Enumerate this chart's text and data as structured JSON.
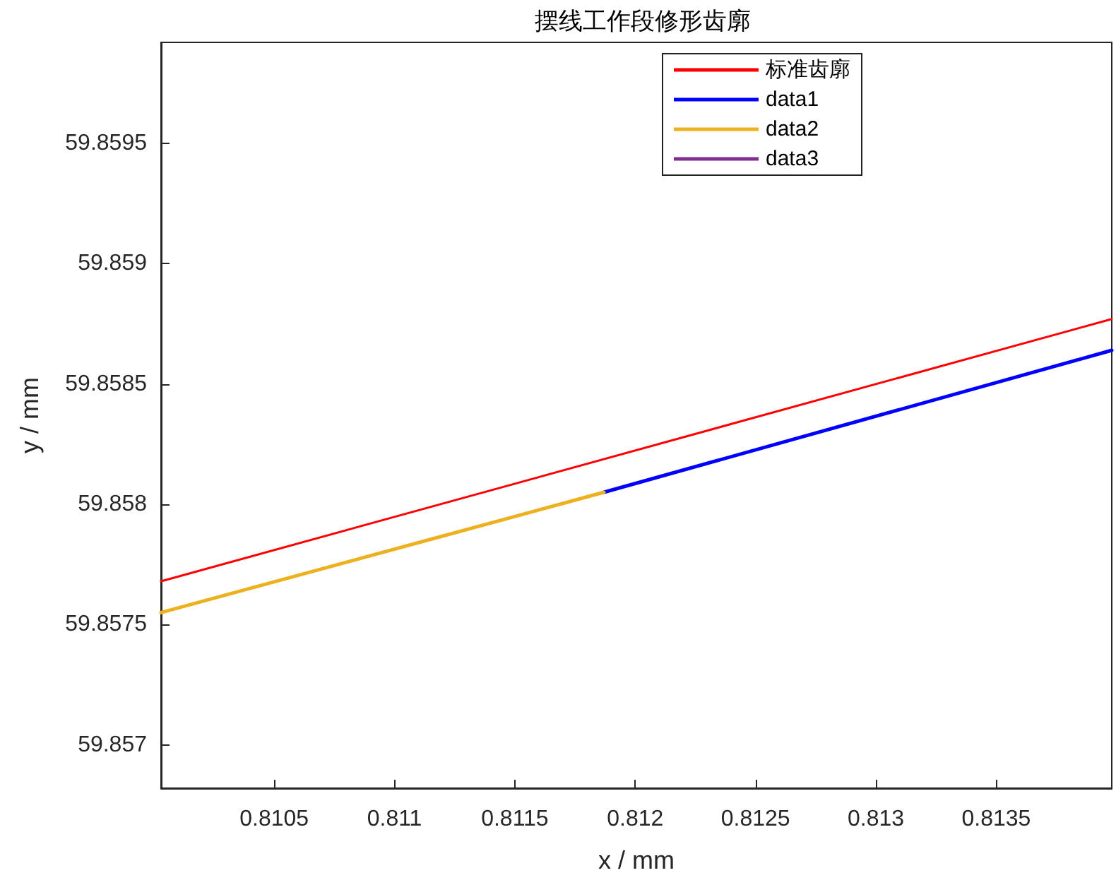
{
  "chart_data": {
    "type": "line",
    "title": "摆线工作段修形齿廓",
    "xlabel": "x / mm",
    "ylabel": "y / mm",
    "xlim": [
      0.81003,
      0.81398
    ],
    "xticks": [
      0.8105,
      0.811,
      0.8115,
      0.812,
      0.8125,
      0.813,
      0.8135
    ],
    "ylim": [
      59.85682,
      59.85992
    ],
    "yticks": [
      59.857,
      59.8575,
      59.858,
      59.8585,
      59.859,
      59.8595
    ],
    "grid": false,
    "legend": "top right",
    "marker": "none",
    "line_style": "solid",
    "series": [
      {
        "name": "标准齿廓",
        "color": "#ff0000",
        "x": [
          0.81003,
          0.81398
        ],
        "values": [
          59.85768,
          59.85877
        ]
      },
      {
        "name": "data1",
        "color": "#0000ff",
        "x": [
          0.81187,
          0.81398
        ],
        "values": [
          59.85805,
          59.85864
        ]
      },
      {
        "name": "data2",
        "color": "#edb120",
        "x": [
          0.81003,
          0.81187
        ],
        "values": [
          59.85755,
          59.85805
        ]
      },
      {
        "name": "data3",
        "color": "#7e2f8e"
      }
    ]
  }
}
